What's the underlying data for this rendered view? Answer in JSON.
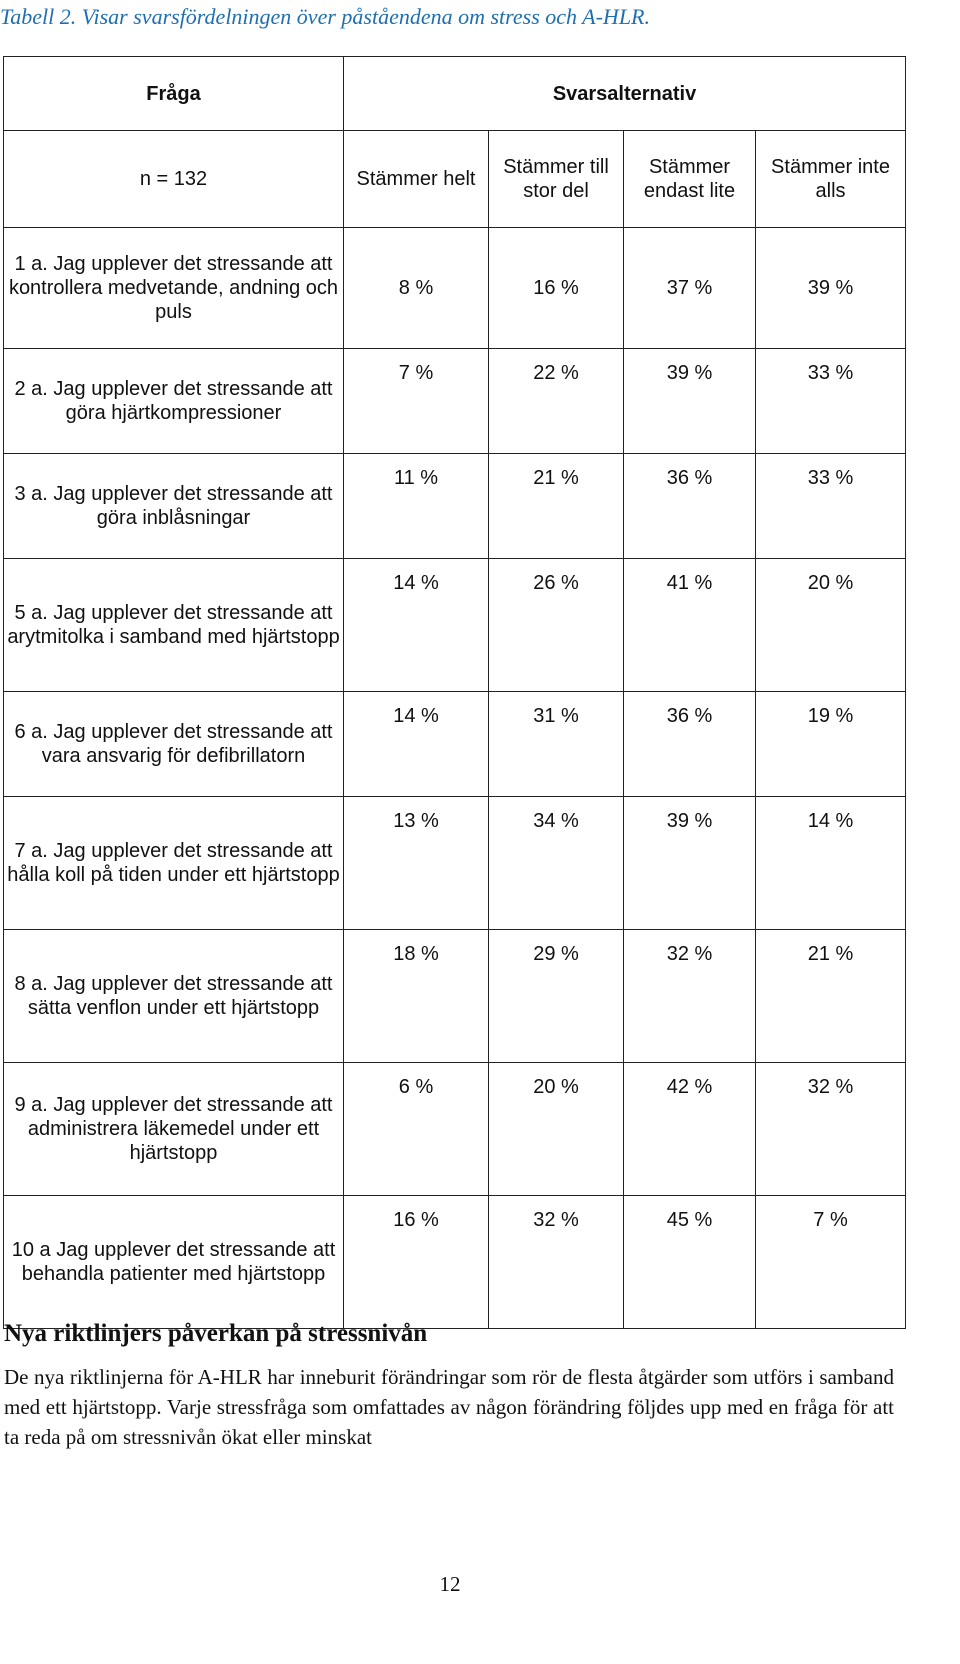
{
  "caption": "Tabell 2. Visar svarsfördelningen över påståendena om stress och A-HLR.",
  "table": {
    "header_question": "Fråga",
    "header_answers": "Svarsalternativ",
    "n_label": "n = 132",
    "columns": [
      "Stämmer helt",
      "Stämmer till stor del",
      "Stämmer endast lite",
      "Stämmer inte alls"
    ],
    "rows": [
      {
        "question": "1 a. Jag upplever det stressande att kontrollera medvetande, andning och puls",
        "values": [
          "8 %",
          "16 %",
          "37 %",
          "39 %"
        ]
      },
      {
        "question": "2 a. Jag upplever det stressande att göra hjärtkompressioner",
        "values": [
          "7 %",
          "22 %",
          "39 %",
          "33 %"
        ]
      },
      {
        "question": "3 a. Jag upplever det stressande att göra inblåsningar",
        "values": [
          "11 %",
          "21 %",
          "36 %",
          "33 %"
        ]
      },
      {
        "question": "5 a. Jag upplever det stressande att arytmitolka i samband med hjärtstopp",
        "values": [
          "14 %",
          "26 %",
          "41 %",
          "20 %"
        ]
      },
      {
        "question": "6 a. Jag upplever det stressande att vara ansvarig för defibrillatorn",
        "values": [
          "14 %",
          "31 %",
          "36 %",
          "19 %"
        ]
      },
      {
        "question": "7 a. Jag upplever det stressande att hålla koll på tiden under ett hjärtstopp",
        "values": [
          "13 %",
          "34 %",
          "39 %",
          "14 %"
        ]
      },
      {
        "question": "8 a. Jag upplever det stressande att sätta venflon under ett hjärtstopp",
        "values": [
          "18 %",
          "29 %",
          "32 %",
          "21 %"
        ]
      },
      {
        "question": "9 a. Jag upplever det stressande att administrera läkemedel under ett hjärtstopp",
        "values": [
          "6 %",
          "20 %",
          "42 %",
          "32 %"
        ]
      },
      {
        "question": "10 a Jag upplever det stressande att behandla patienter med hjärtstopp",
        "values": [
          "16 %",
          "32 %",
          "45 %",
          "7 %"
        ]
      }
    ]
  },
  "section_heading": "Nya riktlinjers påverkan på stressnivån",
  "paragraph": "De nya riktlinjerna för A-HLR har inneburit förändringar som rör de flesta åtgärder som utförs i samband med ett hjärtstopp. Varje stressfråga som omfattades av någon förändring följdes upp med en fråga för att ta reda på om stressnivån ökat eller minskat",
  "page_number": "12"
}
